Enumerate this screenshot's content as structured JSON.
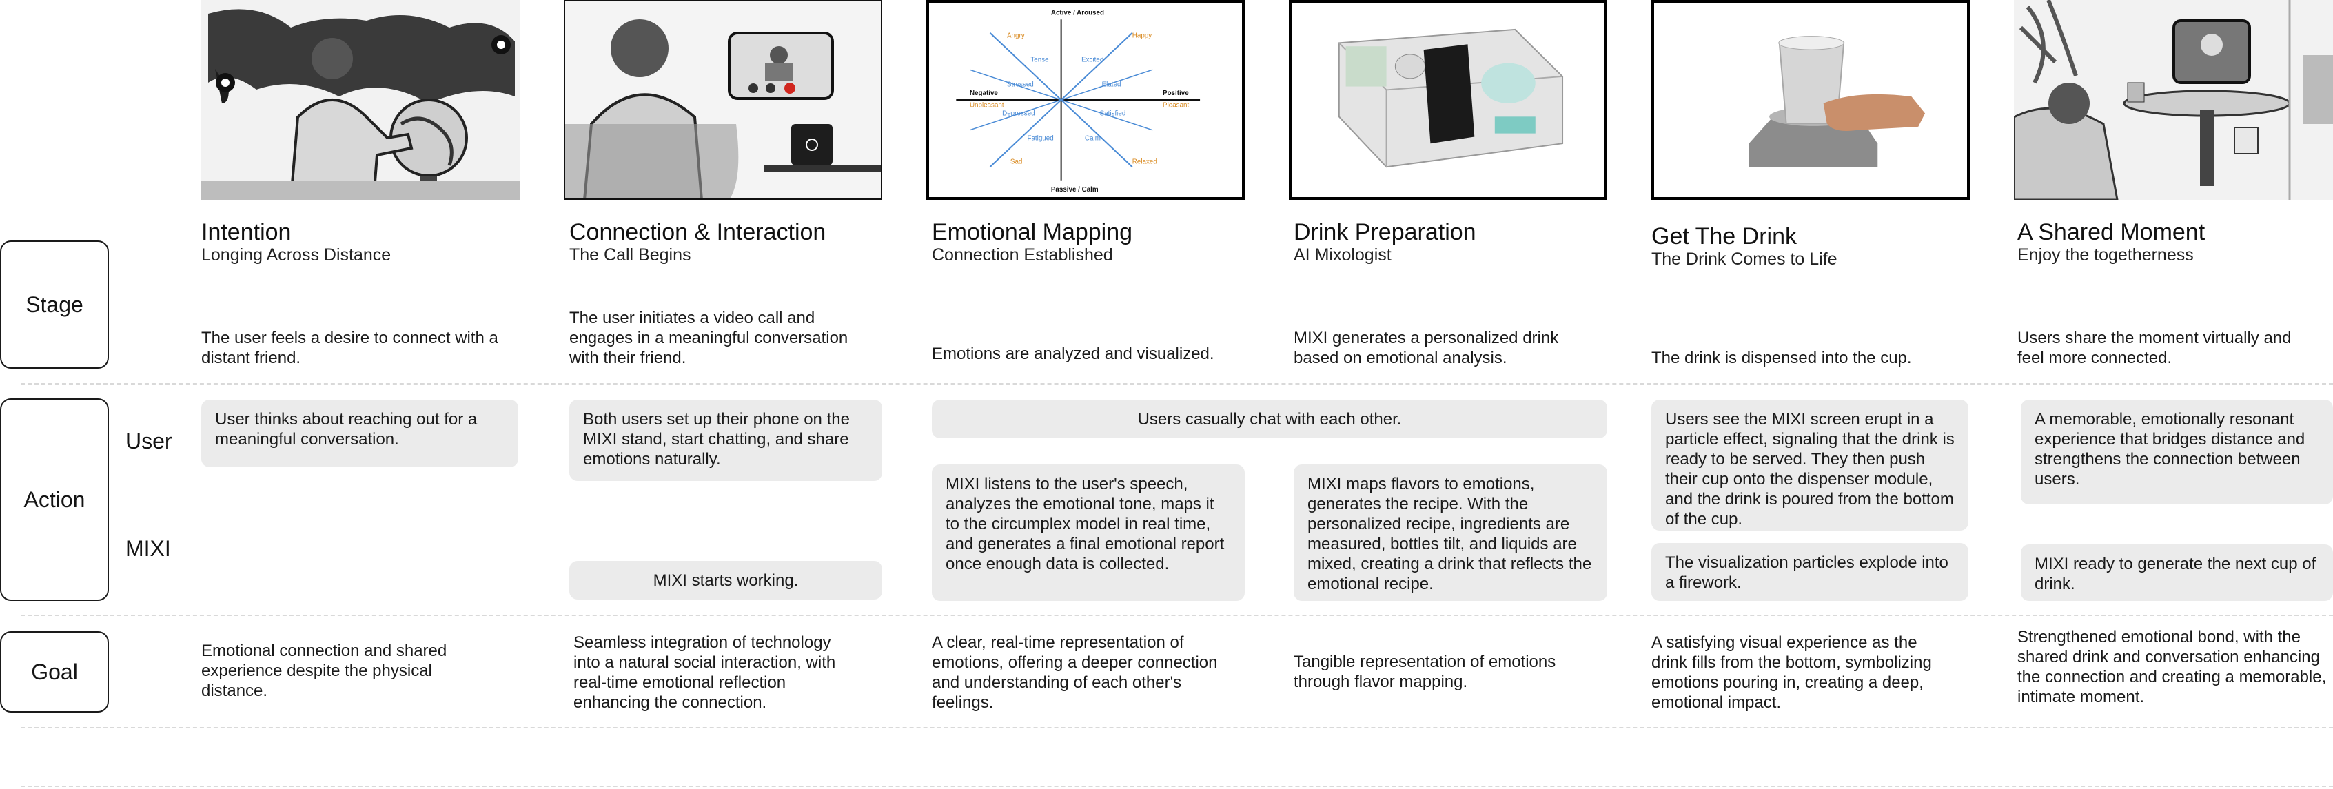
{
  "rows": {
    "stage": "Stage",
    "action": "Action",
    "goal": "Goal",
    "user": "User",
    "mixi": "MIXI"
  },
  "stages": [
    {
      "title": "Intention",
      "subtitle": "Longing Across Distance",
      "description": "The user feels a desire to connect with a distant friend.",
      "user_action": "User thinks about reaching out for a meaningful conversation.",
      "goal": "Emotional connection and shared experience despite the physical distance."
    },
    {
      "title": "Connection & Interaction",
      "subtitle": "The Call Begins",
      "description": "The user initiates a video call and engages in a meaningful conversation with their friend.",
      "user_action": "Both users set up their phone on the MIXI stand, start chatting, and share emotions naturally.",
      "mixi_action": "MIXI starts working.",
      "goal": "Seamless integration of technology into a natural social interaction, with real-time emotional reflection enhancing the connection."
    },
    {
      "title": "Emotional Mapping",
      "subtitle": "Connection Established",
      "description": "Emotions are analyzed and visualized.",
      "mixi_action": "MIXI listens to the user's speech, analyzes the emotional tone, maps it to the circumplex model in real time, and generates a final emotional report once enough data is collected.",
      "goal": "A clear, real-time representation of emotions, offering a deeper connection and understanding of each other's feelings."
    },
    {
      "title": "Drink Preparation",
      "subtitle": "AI Mixologist",
      "description": "MIXI generates a personalized drink based on emotional analysis.",
      "mixi_action": "MIXI maps flavors to emotions, generates the recipe. With the personalized recipe, ingredients are measured, bottles tilt, and liquids are mixed, creating a drink that reflects the emotional recipe.",
      "goal": "Tangible representation of emotions through flavor mapping."
    },
    {
      "title": "Get The Drink",
      "subtitle": "The Drink Comes to Life",
      "description": "The drink is dispensed into the cup.",
      "user_action": "Users see the MIXI screen erupt in a particle effect, signaling that the drink is ready to be served. They then push their cup onto the dispenser module, and the drink is poured from the bottom of the cup.",
      "mixi_action": "The visualization particles explode into a firework.",
      "goal": "A satisfying visual experience as the drink fills from the bottom, symbolizing emotions pouring in, creating a deep, emotional impact."
    },
    {
      "title": "A Shared Moment",
      "subtitle": "Enjoy the togetherness",
      "description": "Users share the moment virtually and feel more connected.",
      "user_action": "A memorable, emotionally resonant experience that bridges distance and strengthens the connection between users.",
      "mixi_action": "MIXI ready to generate the next cup of drink.",
      "goal": "Strengthened emotional bond, with the shared drink and conversation enhancing the connection and creating a memorable, intimate moment."
    }
  ],
  "shared_user_action": "Users casually chat with each other.",
  "circumplex": {
    "axes": {
      "top": "Active / Aroused",
      "bottom": "Passive / Calm",
      "left": "Negative",
      "right": "Positive"
    },
    "emotions": [
      "Tense",
      "Excited",
      "Stressed",
      "Elated",
      "Depressed",
      "Satisfied",
      "Fatigued",
      "Calm",
      "Angry",
      "Happy",
      "Sad",
      "Relaxed",
      "Unpleasant",
      "Pleasant"
    ]
  }
}
